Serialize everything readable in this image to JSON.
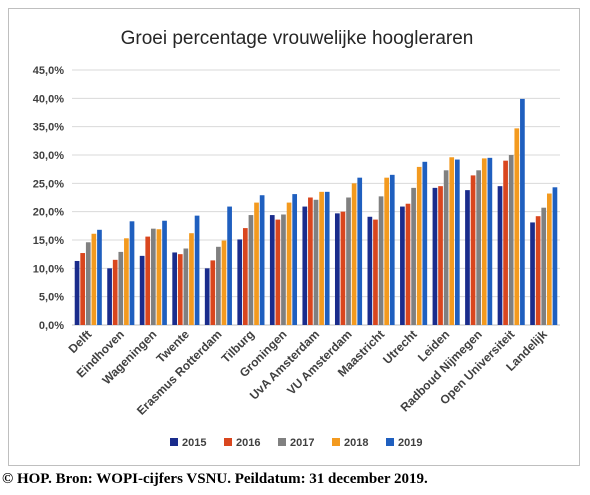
{
  "chart_data": {
    "type": "bar",
    "title": "Groei percentage vrouwelijke hoogleraren",
    "xlabel": "",
    "ylabel": "",
    "ylim": [
      0,
      45
    ],
    "yticks": [
      "0,0%",
      "5,0%",
      "10,0%",
      "15,0%",
      "20,0%",
      "25,0%",
      "30,0%",
      "35,0%",
      "40,0%",
      "45,0%"
    ],
    "grid": true,
    "legend_position": "bottom",
    "categories": [
      "Delft",
      "Eindhoven",
      "Wageningen",
      "Twente",
      "Erasmus Rotterdam",
      "Tilburg",
      "Groningen",
      "UvA Amsterdam",
      "VU Amsterdam",
      "Maastricht",
      "Utrecht",
      "Leiden",
      "Radboud Nijmegen",
      "Open Universiteit",
      "Landelijk"
    ],
    "series": [
      {
        "name": "2015",
        "color": "#1a2c8c",
        "values": [
          11.3,
          10.0,
          12.2,
          12.8,
          10.0,
          15.1,
          19.4,
          20.9,
          19.7,
          19.1,
          20.9,
          24.2,
          23.8,
          24.5,
          18.1
        ]
      },
      {
        "name": "2016",
        "color": "#d9461e",
        "values": [
          12.7,
          11.5,
          15.6,
          12.5,
          11.4,
          17.1,
          18.6,
          22.5,
          20.0,
          18.6,
          21.4,
          24.5,
          26.4,
          29.0,
          19.2
        ]
      },
      {
        "name": "2017",
        "color": "#808080",
        "values": [
          14.6,
          12.9,
          17.0,
          13.5,
          13.8,
          19.4,
          19.5,
          22.1,
          22.5,
          22.7,
          24.2,
          27.3,
          27.3,
          30.0,
          20.7
        ]
      },
      {
        "name": "2018",
        "color": "#f39a1f",
        "values": [
          16.1,
          15.3,
          16.9,
          16.2,
          14.9,
          21.6,
          21.6,
          23.5,
          25.0,
          26.0,
          27.9,
          29.6,
          29.4,
          34.7,
          23.2
        ]
      },
      {
        "name": "2019",
        "color": "#1f5fbf",
        "values": [
          16.8,
          18.3,
          18.4,
          19.3,
          20.9,
          22.9,
          23.1,
          23.5,
          26.0,
          26.5,
          28.8,
          29.2,
          29.5,
          39.9,
          24.3
        ]
      }
    ]
  },
  "footer": {
    "credit": "© HOP. Bron: WOPI-cijfers VSNU. Peildatum: 31 december 2019."
  }
}
